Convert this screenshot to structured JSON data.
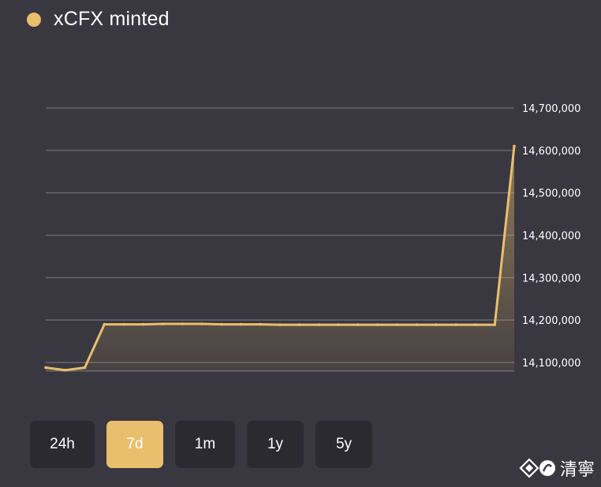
{
  "legend": {
    "label": "xCFX minted",
    "color": "#e9be6c"
  },
  "timeframes": [
    {
      "label": "24h",
      "active": false
    },
    {
      "label": "7d",
      "active": true
    },
    {
      "label": "1m",
      "active": false
    },
    {
      "label": "1y",
      "active": false
    },
    {
      "label": "5y",
      "active": false
    }
  ],
  "watermark": {
    "text": "清寧"
  },
  "chart_data": {
    "type": "area",
    "title": "",
    "xlabel": "",
    "ylabel": "",
    "ylim": [
      14080000,
      14700000
    ],
    "yticks": [
      14100000,
      14200000,
      14300000,
      14400000,
      14500000,
      14600000,
      14700000
    ],
    "ytick_labels": [
      "14,100,000",
      "14,200,000",
      "14,300,000",
      "14,400,000",
      "14,500,000",
      "14,600,000",
      "14,700,000"
    ],
    "grid": true,
    "axis_side": "right",
    "legend_position": "top-left",
    "series": [
      {
        "color": "#e9be6c",
        "values": [
          14088000,
          14082000,
          14088000,
          14190000,
          14190000,
          14190000,
          14191000,
          14191000,
          14191000,
          14190000,
          14190000,
          14190000,
          14189000,
          14189000,
          14189000,
          14189000,
          14189000,
          14189000,
          14189000,
          14189000,
          14189000,
          14189000,
          14189000,
          14189000,
          14610000
        ]
      }
    ]
  }
}
